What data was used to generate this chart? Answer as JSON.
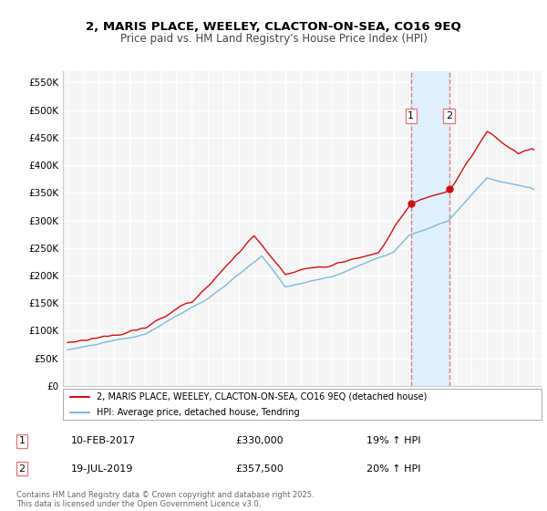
{
  "title1": "2, MARIS PLACE, WEELEY, CLACTON-ON-SEA, CO16 9EQ",
  "title2": "Price paid vs. HM Land Registry's House Price Index (HPI)",
  "ylabel_ticks": [
    "£0",
    "£50K",
    "£100K",
    "£150K",
    "£200K",
    "£250K",
    "£300K",
    "£350K",
    "£400K",
    "£450K",
    "£500K",
    "£550K"
  ],
  "ytick_values": [
    0,
    50000,
    100000,
    150000,
    200000,
    250000,
    300000,
    350000,
    400000,
    450000,
    500000,
    550000
  ],
  "ylim": [
    0,
    570000
  ],
  "sale1_date": "10-FEB-2017",
  "sale1_price": 330000,
  "sale1_year": 2017.1,
  "sale1_label": "19% ↑ HPI",
  "sale2_date": "19-JUL-2019",
  "sale2_price": 357500,
  "sale2_year": 2019.55,
  "sale2_label": "20% ↑ HPI",
  "legend_line1": "2, MARIS PLACE, WEELEY, CLACTON-ON-SEA, CO16 9EQ (detached house)",
  "legend_line2": "HPI: Average price, detached house, Tendring",
  "footnote": "Contains HM Land Registry data © Crown copyright and database right 2025.\nThis data is licensed under the Open Government Licence v3.0.",
  "hpi_color": "#7eb8e0",
  "price_color": "#cc1111",
  "shade_color": "#ddeeff",
  "vline_color": "#e08080",
  "background_color": "#f5f5f5",
  "grid_color": "#ffffff",
  "sale1_price_fmt": "£330,000",
  "sale2_price_fmt": "£357,500"
}
